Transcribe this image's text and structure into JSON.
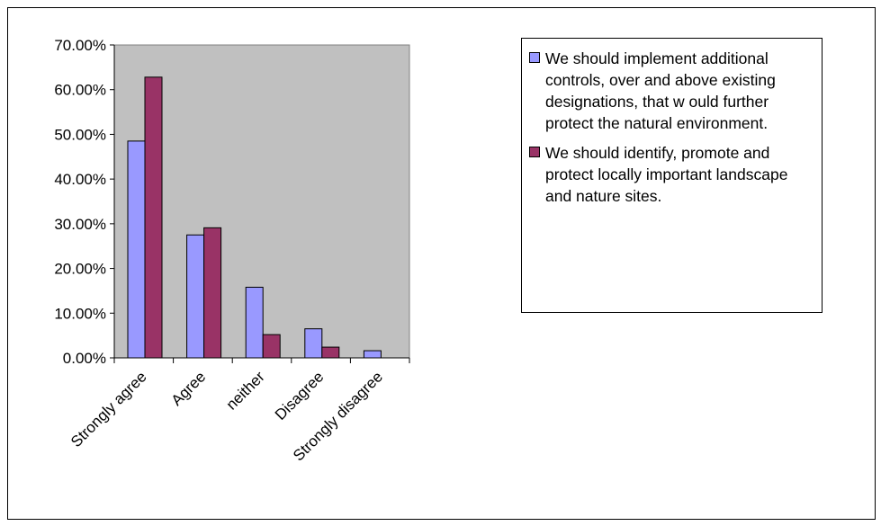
{
  "chart_data": {
    "type": "bar",
    "categories": [
      "Strongly agree",
      "Agree",
      "neither",
      "Disagree",
      "Strongly disagree"
    ],
    "series": [
      {
        "name": "We should implement additional controls, over and above existing designations, that w ould further protect the natural environment.",
        "values": [
          48.5,
          27.5,
          15.8,
          6.5,
          1.6
        ],
        "color": "#9999ff"
      },
      {
        "name": "We should identify, promote and protect locally important landscape and nature sites.",
        "values": [
          62.8,
          29.1,
          5.2,
          2.4,
          0
        ],
        "color": "#993366"
      }
    ],
    "yticks": [
      "0.00%",
      "10.00%",
      "20.00%",
      "30.00%",
      "40.00%",
      "50.00%",
      "60.00%",
      "70.00%"
    ],
    "ylim": [
      0,
      70
    ],
    "plot_background": "#c0c0c0",
    "grid": false,
    "legend_position": "right",
    "title": "",
    "xlabel": "",
    "ylabel": ""
  }
}
